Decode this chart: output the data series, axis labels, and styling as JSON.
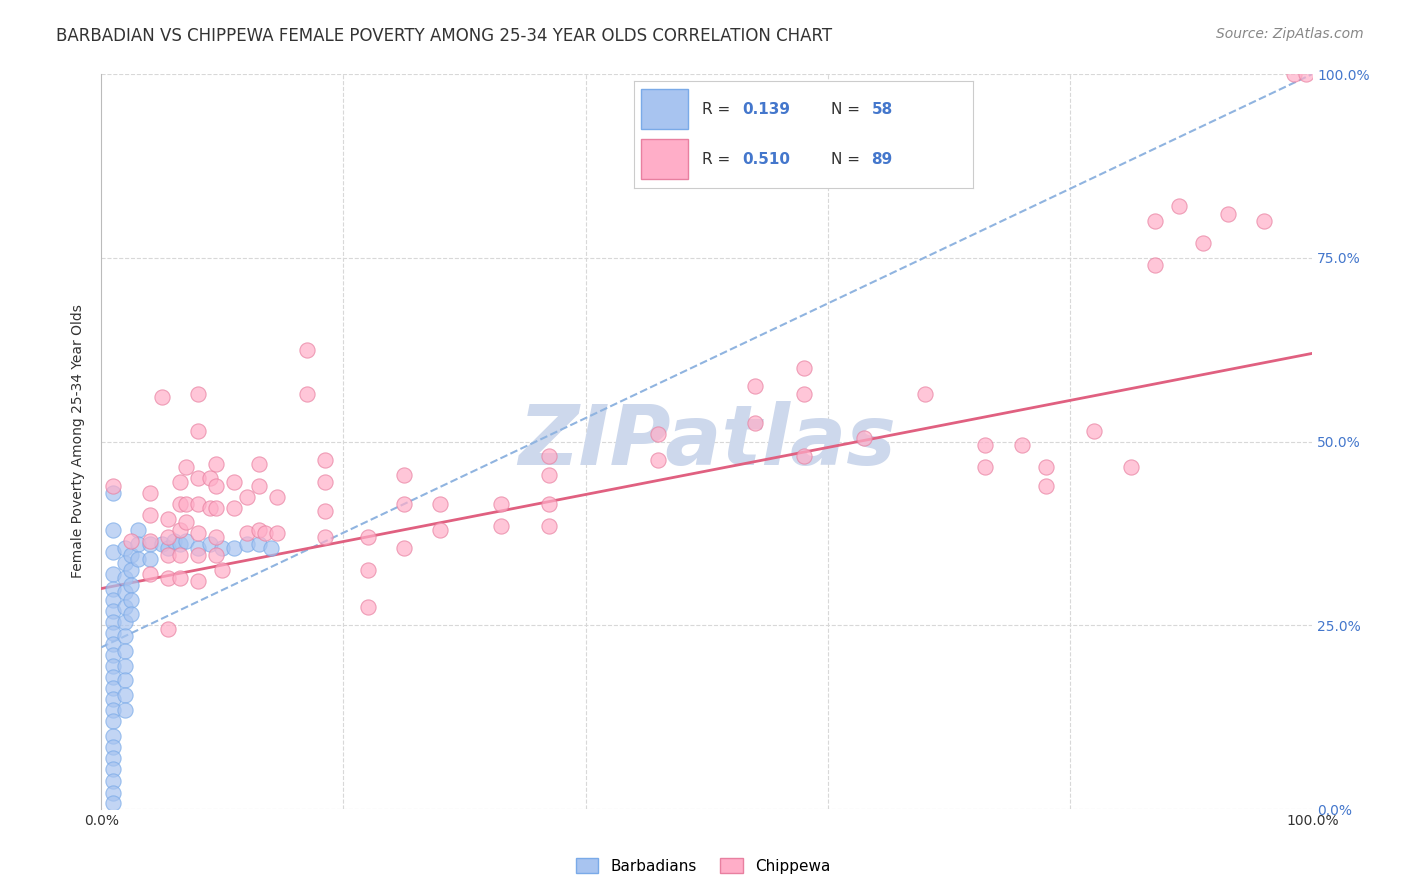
{
  "title": "BARBADIAN VS CHIPPEWA FEMALE POVERTY AMONG 25-34 YEAR OLDS CORRELATION CHART",
  "source": "Source: ZipAtlas.com",
  "ylabel": "Female Poverty Among 25-34 Year Olds",
  "xlim": [
    0,
    1
  ],
  "ylim": [
    0,
    1
  ],
  "ytick_positions": [
    0.0,
    0.25,
    0.5,
    0.75,
    1.0
  ],
  "ytick_labels_right": [
    "0.0%",
    "25.0%",
    "50.0%",
    "75.0%",
    "100.0%"
  ],
  "xtick_positions": [
    0.0,
    1.0
  ],
  "xtick_labels": [
    "0.0%",
    "100.0%"
  ],
  "background_color": "#ffffff",
  "watermark_text": "ZIPatlas",
  "watermark_color": "#cdd8ec",
  "barbadian_color": "#a8c4f0",
  "barbadian_edge": "#7aaae8",
  "chippewa_color": "#ffaec8",
  "chippewa_edge": "#e880a0",
  "barbadian_line_color": "#90b4e0",
  "chippewa_line_color": "#e06080",
  "grid_color": "#d8d8d8",
  "tick_label_color_right": "#4477cc",
  "tick_label_color_bottom": "#333333",
  "title_color": "#333333",
  "source_color": "#888888",
  "ylabel_color": "#333333",
  "title_fontsize": 12,
  "source_fontsize": 10,
  "axis_label_fontsize": 10,
  "tick_fontsize": 10,
  "legend_fontsize": 11,
  "scatter_size": 120,
  "scatter_alpha": 0.7,
  "barbadian_scatter": [
    [
      0.01,
      0.43
    ],
    [
      0.01,
      0.38
    ],
    [
      0.01,
      0.35
    ],
    [
      0.01,
      0.32
    ],
    [
      0.01,
      0.3
    ],
    [
      0.01,
      0.285
    ],
    [
      0.01,
      0.27
    ],
    [
      0.01,
      0.255
    ],
    [
      0.01,
      0.24
    ],
    [
      0.01,
      0.225
    ],
    [
      0.01,
      0.21
    ],
    [
      0.01,
      0.195
    ],
    [
      0.01,
      0.18
    ],
    [
      0.01,
      0.165
    ],
    [
      0.01,
      0.15
    ],
    [
      0.01,
      0.135
    ],
    [
      0.01,
      0.12
    ],
    [
      0.01,
      0.1
    ],
    [
      0.01,
      0.085
    ],
    [
      0.01,
      0.07
    ],
    [
      0.01,
      0.055
    ],
    [
      0.01,
      0.038
    ],
    [
      0.01,
      0.022
    ],
    [
      0.01,
      0.008
    ],
    [
      0.02,
      0.355
    ],
    [
      0.02,
      0.335
    ],
    [
      0.02,
      0.315
    ],
    [
      0.02,
      0.295
    ],
    [
      0.02,
      0.275
    ],
    [
      0.02,
      0.255
    ],
    [
      0.02,
      0.235
    ],
    [
      0.02,
      0.215
    ],
    [
      0.02,
      0.195
    ],
    [
      0.02,
      0.175
    ],
    [
      0.02,
      0.155
    ],
    [
      0.02,
      0.135
    ],
    [
      0.025,
      0.345
    ],
    [
      0.025,
      0.325
    ],
    [
      0.025,
      0.305
    ],
    [
      0.025,
      0.285
    ],
    [
      0.025,
      0.265
    ],
    [
      0.03,
      0.38
    ],
    [
      0.03,
      0.36
    ],
    [
      0.03,
      0.34
    ],
    [
      0.04,
      0.36
    ],
    [
      0.04,
      0.34
    ],
    [
      0.05,
      0.36
    ],
    [
      0.055,
      0.355
    ],
    [
      0.06,
      0.365
    ],
    [
      0.065,
      0.36
    ],
    [
      0.07,
      0.365
    ],
    [
      0.08,
      0.355
    ],
    [
      0.09,
      0.36
    ],
    [
      0.1,
      0.355
    ],
    [
      0.11,
      0.355
    ],
    [
      0.12,
      0.36
    ],
    [
      0.13,
      0.36
    ],
    [
      0.14,
      0.355
    ]
  ],
  "chippewa_scatter": [
    [
      0.01,
      0.44
    ],
    [
      0.025,
      0.365
    ],
    [
      0.04,
      0.43
    ],
    [
      0.04,
      0.4
    ],
    [
      0.04,
      0.365
    ],
    [
      0.04,
      0.32
    ],
    [
      0.05,
      0.56
    ],
    [
      0.055,
      0.395
    ],
    [
      0.055,
      0.37
    ],
    [
      0.055,
      0.345
    ],
    [
      0.055,
      0.315
    ],
    [
      0.055,
      0.245
    ],
    [
      0.065,
      0.445
    ],
    [
      0.065,
      0.415
    ],
    [
      0.065,
      0.38
    ],
    [
      0.065,
      0.345
    ],
    [
      0.065,
      0.315
    ],
    [
      0.07,
      0.465
    ],
    [
      0.07,
      0.415
    ],
    [
      0.07,
      0.39
    ],
    [
      0.08,
      0.565
    ],
    [
      0.08,
      0.515
    ],
    [
      0.08,
      0.45
    ],
    [
      0.08,
      0.415
    ],
    [
      0.08,
      0.375
    ],
    [
      0.08,
      0.345
    ],
    [
      0.08,
      0.31
    ],
    [
      0.09,
      0.45
    ],
    [
      0.09,
      0.41
    ],
    [
      0.095,
      0.47
    ],
    [
      0.095,
      0.44
    ],
    [
      0.095,
      0.41
    ],
    [
      0.095,
      0.37
    ],
    [
      0.095,
      0.345
    ],
    [
      0.1,
      0.325
    ],
    [
      0.11,
      0.445
    ],
    [
      0.11,
      0.41
    ],
    [
      0.12,
      0.425
    ],
    [
      0.12,
      0.375
    ],
    [
      0.13,
      0.47
    ],
    [
      0.13,
      0.44
    ],
    [
      0.13,
      0.38
    ],
    [
      0.135,
      0.375
    ],
    [
      0.145,
      0.425
    ],
    [
      0.145,
      0.375
    ],
    [
      0.17,
      0.625
    ],
    [
      0.17,
      0.565
    ],
    [
      0.185,
      0.475
    ],
    [
      0.185,
      0.445
    ],
    [
      0.185,
      0.405
    ],
    [
      0.185,
      0.37
    ],
    [
      0.22,
      0.37
    ],
    [
      0.22,
      0.325
    ],
    [
      0.22,
      0.275
    ],
    [
      0.25,
      0.455
    ],
    [
      0.25,
      0.415
    ],
    [
      0.25,
      0.355
    ],
    [
      0.28,
      0.415
    ],
    [
      0.28,
      0.38
    ],
    [
      0.33,
      0.415
    ],
    [
      0.33,
      0.385
    ],
    [
      0.37,
      0.48
    ],
    [
      0.37,
      0.455
    ],
    [
      0.37,
      0.415
    ],
    [
      0.37,
      0.385
    ],
    [
      0.46,
      0.51
    ],
    [
      0.46,
      0.475
    ],
    [
      0.54,
      0.575
    ],
    [
      0.54,
      0.525
    ],
    [
      0.58,
      0.6
    ],
    [
      0.58,
      0.565
    ],
    [
      0.58,
      0.48
    ],
    [
      0.63,
      0.505
    ],
    [
      0.68,
      0.565
    ],
    [
      0.73,
      0.495
    ],
    [
      0.73,
      0.465
    ],
    [
      0.76,
      0.495
    ],
    [
      0.78,
      0.465
    ],
    [
      0.78,
      0.44
    ],
    [
      0.82,
      0.515
    ],
    [
      0.85,
      0.465
    ],
    [
      0.87,
      0.8
    ],
    [
      0.87,
      0.74
    ],
    [
      0.89,
      0.82
    ],
    [
      0.91,
      0.77
    ],
    [
      0.93,
      0.81
    ],
    [
      0.96,
      0.8
    ],
    [
      0.985,
      1.0
    ],
    [
      0.995,
      1.0
    ]
  ],
  "barbadian_line_x": [
    0.0,
    1.0
  ],
  "barbadian_line_y": [
    0.22,
    1.0
  ],
  "chippewa_line_x": [
    0.0,
    1.0
  ],
  "chippewa_line_y": [
    0.3,
    0.62
  ]
}
